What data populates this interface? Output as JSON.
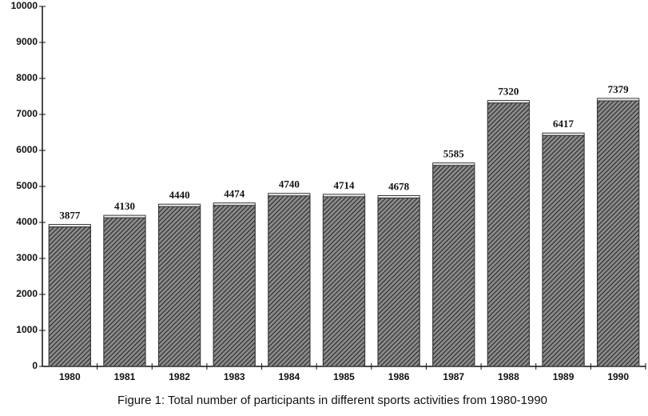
{
  "chart_data": {
    "type": "bar",
    "caption": "Figure 1: Total number of participants in different sports activities from 1980-1990",
    "categories": [
      "1980",
      "1981",
      "1982",
      "1983",
      "1984",
      "1985",
      "1986",
      "1987",
      "1988",
      "1989",
      "1990"
    ],
    "values": [
      3877,
      4130,
      4440,
      4474,
      4740,
      4714,
      4678,
      5585,
      7320,
      6417,
      7379
    ],
    "color": "#3a3a3a",
    "ylim": [
      0,
      10000
    ],
    "yticks": [
      0,
      1000,
      2000,
      3000,
      4000,
      5000,
      6000,
      7000,
      8000,
      9000,
      10000
    ],
    "grid": false
  }
}
